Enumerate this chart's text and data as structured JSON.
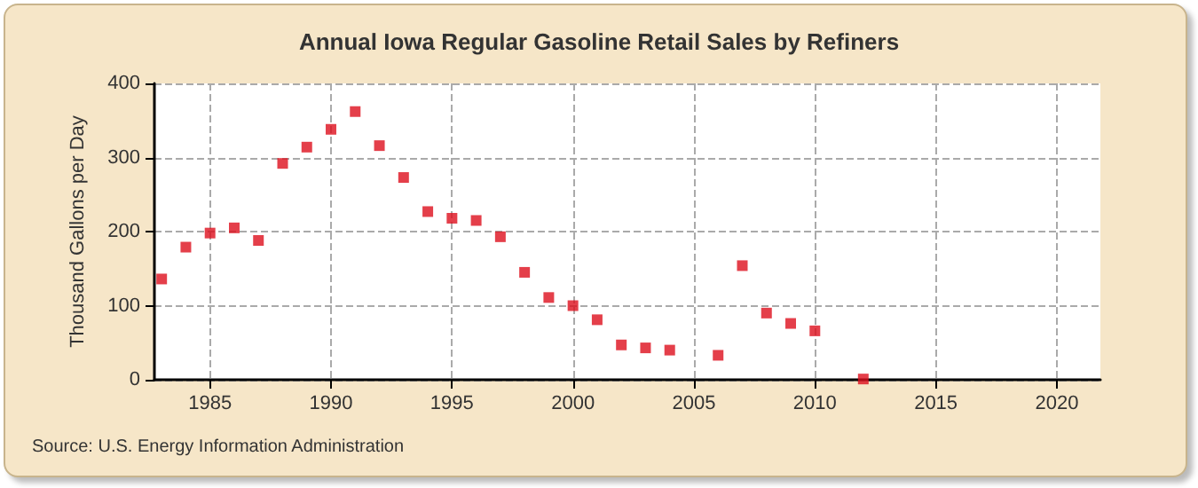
{
  "chart_data": {
    "type": "scatter",
    "title": "Annual Iowa Regular Gasoline Retail Sales by Refiners",
    "ylabel": "Thousand Gallons per Day",
    "x": [
      1983,
      1984,
      1985,
      1986,
      1987,
      1988,
      1989,
      1990,
      1991,
      1992,
      1993,
      1994,
      1995,
      1996,
      1997,
      1998,
      1999,
      2000,
      2001,
      2002,
      2003,
      2004,
      2006,
      2007,
      2008,
      2009,
      2010,
      2012
    ],
    "values": [
      136,
      179,
      198,
      205,
      188,
      292,
      314,
      338,
      362,
      316,
      273,
      227,
      218,
      215,
      193,
      145,
      111,
      100,
      81,
      47,
      43,
      40,
      33,
      154,
      90,
      76,
      66,
      1
    ],
    "color": "#dd0f1d",
    "marker": "square",
    "xlim": [
      1982.7,
      2021.8
    ],
    "xticks": [
      1985,
      1990,
      1995,
      2000,
      2005,
      2010,
      2015,
      2020
    ],
    "ylim": [
      0,
      400
    ],
    "yticks": [
      0,
      100,
      200,
      300,
      400
    ],
    "grid": true,
    "annotations": [
      "Source: U.S. Energy Information Administration"
    ]
  }
}
